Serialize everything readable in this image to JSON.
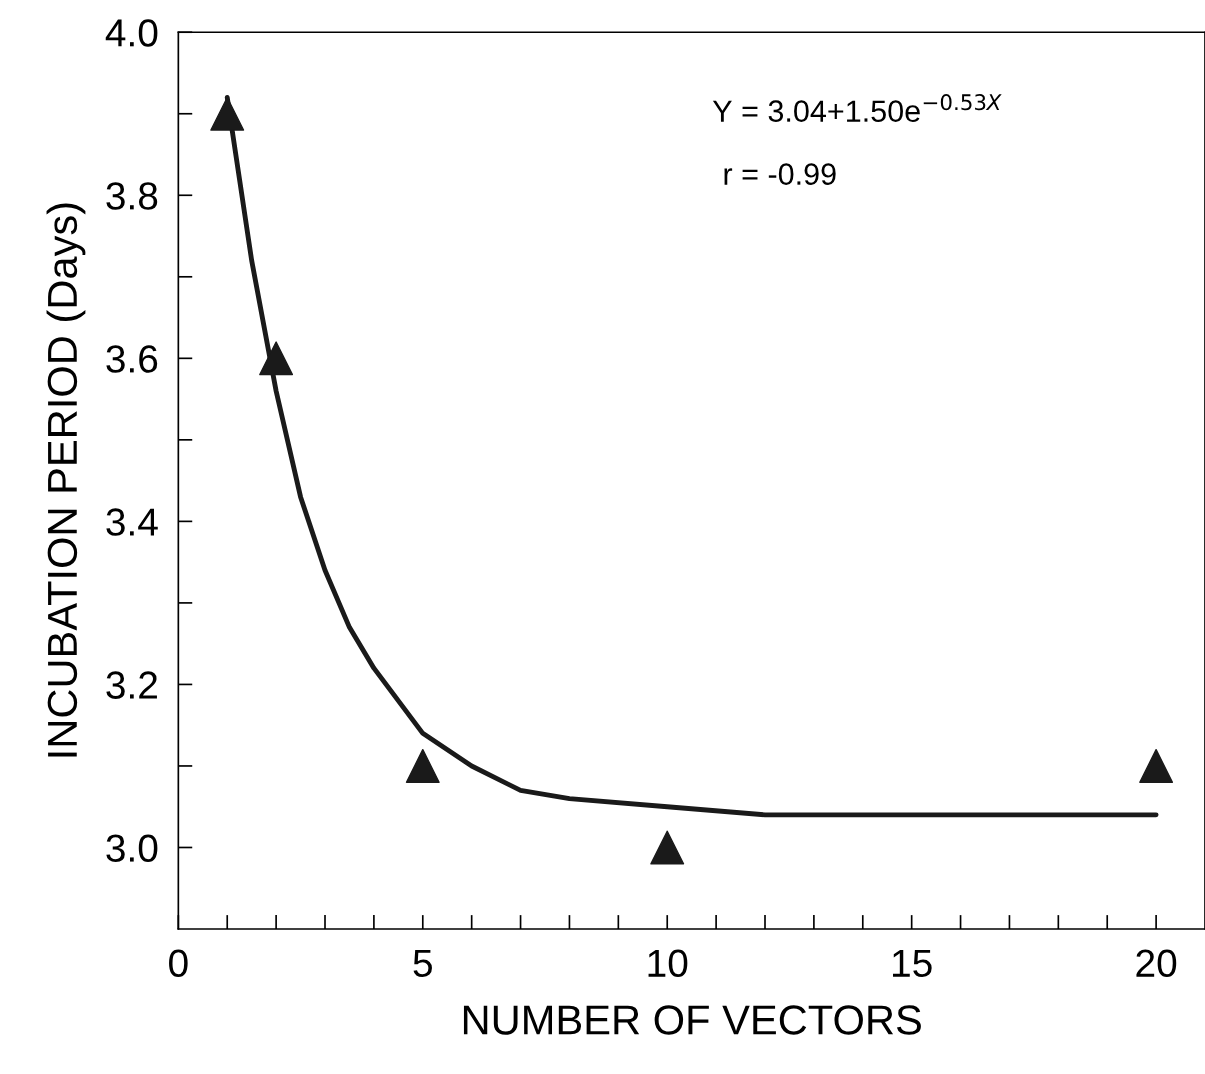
{
  "chart_data": {
    "type": "scatter",
    "xlabel": "NUMBER OF VECTORS",
    "ylabel": "INCUBATION PERIOD (Days)",
    "series": [
      {
        "color": "#1a1a1a",
        "marker": "triangle",
        "x": [
          1,
          2,
          5,
          10,
          20
        ],
        "values": [
          3.9,
          3.6,
          3.1,
          3.0,
          3.1
        ]
      },
      {
        "type": "line",
        "color": "#1a1a1a",
        "line_style": "solid",
        "x": [
          1,
          1.25,
          1.5,
          1.75,
          2,
          2.5,
          3,
          3.5,
          4,
          5,
          6,
          7,
          8,
          10,
          12,
          15,
          20
        ],
        "values": [
          3.92,
          3.82,
          3.72,
          3.64,
          3.56,
          3.43,
          3.34,
          3.27,
          3.22,
          3.14,
          3.1,
          3.07,
          3.06,
          3.05,
          3.04,
          3.04,
          3.04
        ]
      }
    ],
    "xlim": [
      0,
      21
    ],
    "ylim": [
      2.9,
      4.0
    ],
    "xticks": [
      0,
      {
        "value": 1,
        "label": null
      },
      {
        "value": 2,
        "label": null
      },
      {
        "value": 3,
        "label": null
      },
      {
        "value": 4,
        "label": null
      },
      5,
      {
        "value": 6,
        "label": null
      },
      {
        "value": 7,
        "label": null
      },
      {
        "value": 8,
        "label": null
      },
      {
        "value": 9,
        "label": null
      },
      10,
      {
        "value": 11,
        "label": null
      },
      {
        "value": 12,
        "label": null
      },
      {
        "value": 13,
        "label": null
      },
      {
        "value": 14,
        "label": null
      },
      15,
      {
        "value": 16,
        "label": null
      },
      {
        "value": 17,
        "label": null
      },
      {
        "value": 18,
        "label": null
      },
      {
        "value": 19,
        "label": null
      },
      20
    ],
    "yticks": [
      {
        "value": 3.0,
        "label": "3.0"
      },
      {
        "value": 3.1,
        "label": null
      },
      {
        "value": 3.2,
        "label": "3.2"
      },
      {
        "value": 3.3,
        "label": null
      },
      {
        "value": 3.4,
        "label": "3.4"
      },
      {
        "value": 3.5,
        "label": null
      },
      {
        "value": 3.6,
        "label": "3.6"
      },
      {
        "value": 3.7,
        "label": null
      },
      {
        "value": 3.8,
        "label": "3.8"
      },
      {
        "value": 3.9,
        "label": null
      },
      {
        "value": 4.0,
        "label": "4.0"
      }
    ],
    "annotations": [
      "Y = 3.04+1.50e$^{−0.53X}$",
      "r = -0.99"
    ],
    "grid": false,
    "legend": false
  }
}
